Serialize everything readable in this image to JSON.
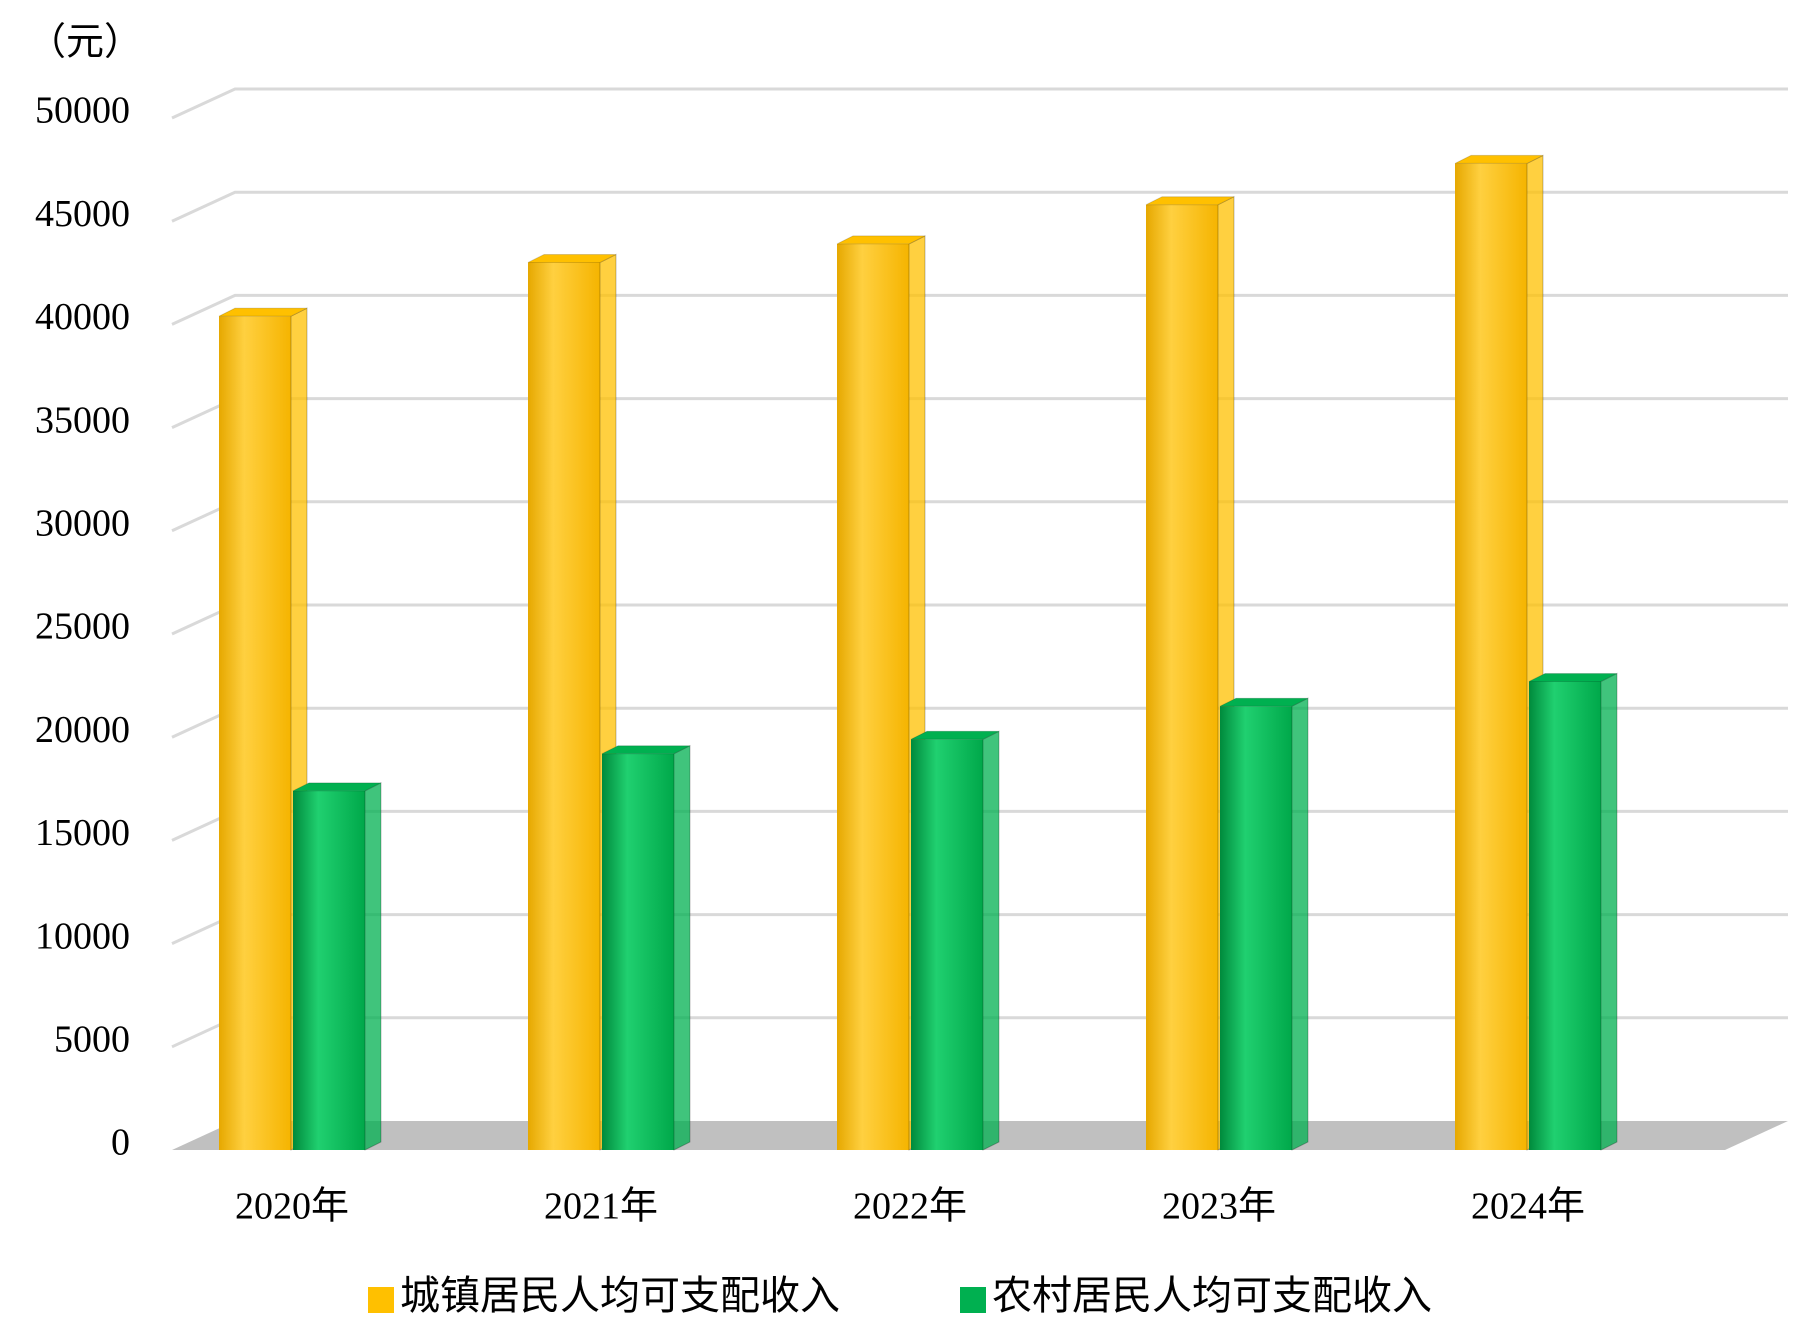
{
  "chart_data": {
    "type": "bar3d",
    "y_label": "（元）",
    "categories": [
      "2020年",
      "2021年",
      "2022年",
      "2023年",
      "2024年"
    ],
    "series": [
      {
        "name": "城镇居民人均可支配收入",
        "color": "#ffc000",
        "values": [
          40400,
          43000,
          43900,
          45800,
          47800
        ]
      },
      {
        "name": "农村居民人均可支配收入",
        "color": "#00b050",
        "values": [
          17400,
          19200,
          19900,
          21500,
          22700
        ]
      }
    ],
    "ylim": [
      0,
      50000
    ],
    "yticks": [
      0,
      5000,
      10000,
      15000,
      20000,
      25000,
      30000,
      35000,
      40000,
      45000,
      50000
    ],
    "grid": true,
    "legend": "bottom"
  }
}
